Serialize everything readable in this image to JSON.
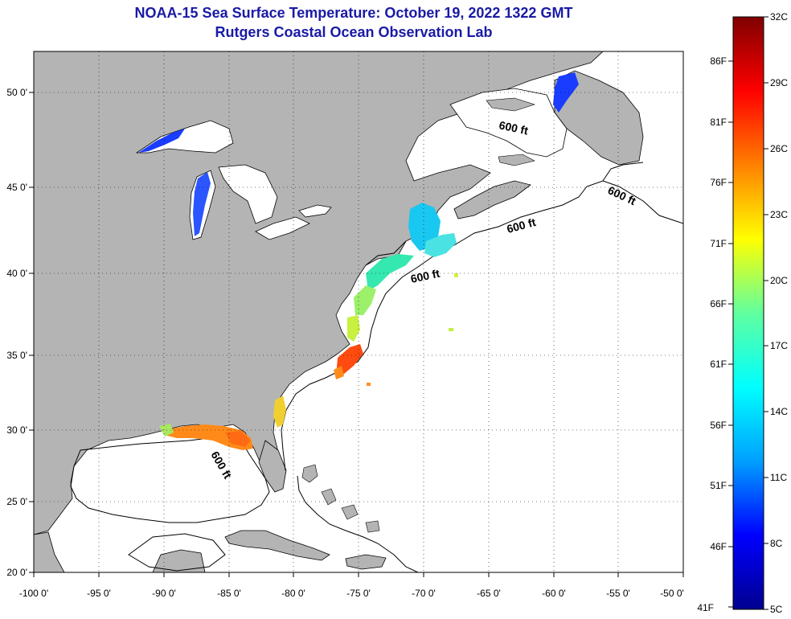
{
  "title": {
    "line1": "NOAA-15 Sea Surface Temperature:  October 19, 2022 1322 GMT",
    "line2": "Rutgers Coastal Ocean Observation Lab"
  },
  "map": {
    "lon_range": [
      -100,
      -50
    ],
    "lat_range": [
      20,
      52.5
    ],
    "lon_ticks": [
      "-100 0'",
      "-95 0'",
      "-90 0'",
      "-85 0'",
      "-80 0'",
      "-75 0'",
      "-70 0'",
      "-65 0'",
      "-60 0'",
      "-55 0'",
      "-50 0'"
    ],
    "lat_ticks": [
      "20 0'",
      "25 0'",
      "30 0'",
      "35 0'",
      "40 0'",
      "45 0'",
      "50 0'"
    ],
    "grid": "dotted",
    "land_color": "#b4b4b4",
    "ocean_color": "#ffffff",
    "contour_labels": [
      "600 ft",
      "600 ft",
      "600 ft",
      "600 ft",
      "600 ft"
    ]
  },
  "colorbar": {
    "celsius_labels": [
      "32C",
      "29C",
      "26C",
      "23C",
      "20C",
      "17C",
      "14C",
      "11C",
      "8C",
      "5C"
    ],
    "fahrenheit_labels": [
      "86F",
      "81F",
      "76F",
      "71F",
      "66F",
      "61F",
      "56F",
      "51F",
      "46F",
      "41F"
    ],
    "min_c": 5,
    "max_c": 32,
    "colors": [
      "#00008f",
      "#0000ff",
      "#00a0ff",
      "#00ffff",
      "#60ff9f",
      "#ffff00",
      "#ff8000",
      "#ff0000",
      "#800000"
    ]
  }
}
